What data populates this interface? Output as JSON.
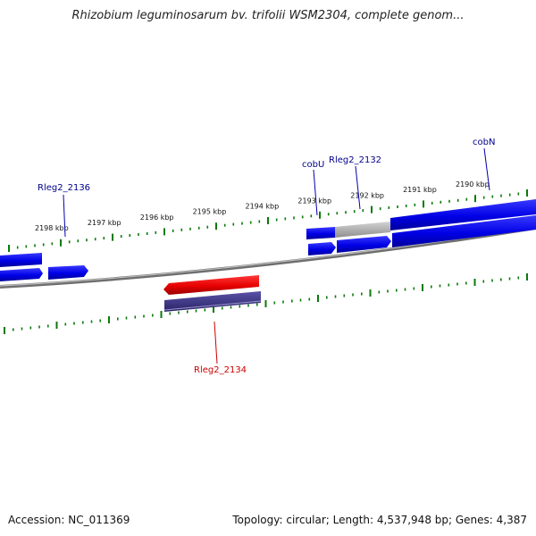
{
  "title": "Rhizobium leguminosarum bv. trifolii WSM2304, complete genom...",
  "footer": {
    "accession": "Accession: NC_011369",
    "summary": "Topology: circular; Length: 4,537,948 bp; Genes: 4,387"
  },
  "ticks": [
    "2198 kbp",
    "2197 kbp",
    "2196 kbp",
    "2195 kbp",
    "2194 kbp",
    "2193 kbp",
    "2192 kbp",
    "2191 kbp",
    "2190 kbp"
  ],
  "genes": {
    "rleg2_2136": "Rleg2_2136",
    "cobU": "cobU",
    "rleg2_2132": "Rleg2_2132",
    "cobN": "cobN",
    "rleg2_2134": "Rleg2_2134"
  },
  "colors": {
    "forward_cds": "#0000ee",
    "reverse_cds": "#ee0000",
    "reverse_gene": "#3d3586",
    "pseudo": "#b0b0b0",
    "backbone": "#808080",
    "ticks": "#0a7a0a",
    "label_forward": "#00008b",
    "label_reverse": "#cc0000"
  }
}
